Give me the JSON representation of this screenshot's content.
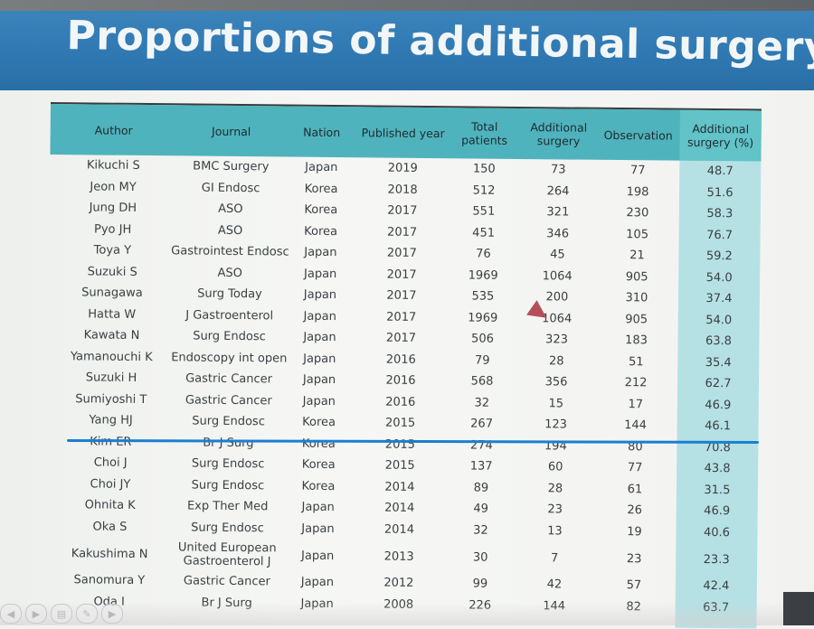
{
  "slide": {
    "title": "Proportions of additional surgery"
  },
  "table": {
    "headers": [
      "Author",
      "Journal",
      "Nation",
      "Published year",
      "Total patients",
      "Additional surgery",
      "Observation",
      "Additional surgery (%)"
    ],
    "rows": [
      [
        "Kikuchi S",
        "BMC Surgery",
        "Japan",
        "2019",
        "150",
        "73",
        "77",
        "48.7"
      ],
      [
        "Jeon MY",
        "GI Endosc",
        "Korea",
        "2018",
        "512",
        "264",
        "198",
        "51.6"
      ],
      [
        "Jung DH",
        "ASO",
        "Korea",
        "2017",
        "551",
        "321",
        "230",
        "58.3"
      ],
      [
        "Pyo JH",
        "ASO",
        "Korea",
        "2017",
        "451",
        "346",
        "105",
        "76.7"
      ],
      [
        "Toya Y",
        "Gastrointest Endosc",
        "Japan",
        "2017",
        "76",
        "45",
        "21",
        "59.2"
      ],
      [
        "Suzuki S",
        "ASO",
        "Japan",
        "2017",
        "1969",
        "1064",
        "905",
        "54.0"
      ],
      [
        "Sunagawa",
        "Surg Today",
        "Japan",
        "2017",
        "535",
        "200",
        "310",
        "37.4"
      ],
      [
        "Hatta W",
        "J Gastroenterol",
        "Japan",
        "2017",
        "1969",
        "1064",
        "905",
        "54.0"
      ],
      [
        "Kawata N",
        "Surg Endosc",
        "Japan",
        "2017",
        "506",
        "323",
        "183",
        "63.8"
      ],
      [
        "Yamanouchi K",
        "Endoscopy int open",
        "Japan",
        "2016",
        "79",
        "28",
        "51",
        "35.4"
      ],
      [
        "Suzuki H",
        "Gastric Cancer",
        "Japan",
        "2016",
        "568",
        "356",
        "212",
        "62.7"
      ],
      [
        "Sumiyoshi T",
        "Gastric Cancer",
        "Japan",
        "2016",
        "32",
        "15",
        "17",
        "46.9"
      ],
      [
        "Yang HJ",
        "Surg Endosc",
        "Korea",
        "2015",
        "267",
        "123",
        "144",
        "46.1"
      ],
      [
        "Kim ER",
        "Br J Surg",
        "Korea",
        "2015",
        "274",
        "194",
        "80",
        "70.8"
      ],
      [
        "Choi J",
        "Surg Endosc",
        "Korea",
        "2015",
        "137",
        "60",
        "77",
        "43.8"
      ],
      [
        "Choi JY",
        "Surg Endosc",
        "Korea",
        "2014",
        "89",
        "28",
        "61",
        "31.5"
      ],
      [
        "Ohnita K",
        "Exp Ther Med",
        "Japan",
        "2014",
        "49",
        "23",
        "26",
        "46.9"
      ],
      [
        "Oka S",
        "Surg Endosc",
        "Japan",
        "2014",
        "32",
        "13",
        "19",
        "40.6"
      ],
      [
        "Kakushima N",
        "United European Gastroenterol J",
        "Japan",
        "2013",
        "30",
        "7",
        "23",
        "23.3"
      ],
      [
        "Sanomura Y",
        "Gastric Cancer",
        "Japan",
        "2012",
        "99",
        "42",
        "57",
        "42.4"
      ],
      [
        "Oda I",
        "Br J Surg",
        "Japan",
        "2008",
        "226",
        "144",
        "82",
        "63.7"
      ]
    ]
  },
  "colors": {
    "header_bg": "#4fb3bd",
    "highlight_col_bg": "#b6e1e4",
    "banner_bg": "#2f78b2",
    "underline": "#1a7fd0"
  },
  "controls": {
    "icons": [
      "prev-icon",
      "play-icon",
      "slides-icon",
      "pen-icon",
      "next-icon"
    ],
    "glyphs": [
      "◀",
      "▶",
      "▤",
      "✎",
      "▶"
    ]
  }
}
